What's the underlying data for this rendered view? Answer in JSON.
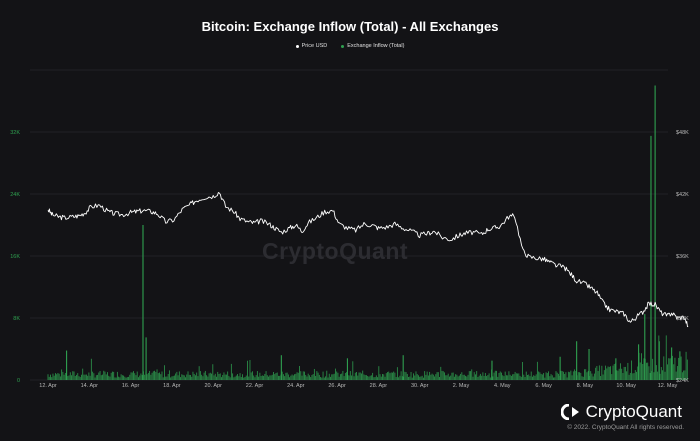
{
  "chart_data": {
    "type": "line",
    "title": "Bitcoin: Exchange Inflow (Total) - All Exchanges",
    "legend": {
      "placement": "top-center",
      "entries": [
        "Price USD",
        "Exchange Inflow (Total)"
      ]
    },
    "x_ticks": [
      "12. Apr",
      "14. Apr",
      "16. Apr",
      "18. Apr",
      "20. Apr",
      "22. Apr",
      "24. Apr",
      "26. Apr",
      "28. Apr",
      "30. Apr",
      "2. May",
      "4. May",
      "6. May",
      "8. May",
      "10. May",
      "12. May"
    ],
    "left_axis": {
      "ticks": [
        "0",
        "8K",
        "16K",
        "24K",
        "32K"
      ],
      "range": [
        0,
        40000
      ]
    },
    "right_axis": {
      "ticks": [
        "$24K",
        "$30K",
        "$36K",
        "$42K",
        "$48K"
      ],
      "range": [
        24000,
        54000
      ]
    },
    "grid": true,
    "series": [
      {
        "name": "Price USD",
        "axis": "right",
        "color": "#ffffff",
        "x_days": [
          0,
          0.2,
          0.5,
          0.8,
          1.2,
          1.5,
          1.8,
          2.1,
          2.5,
          2.9,
          3.2,
          3.6,
          4.0,
          4.3,
          4.6,
          5.0,
          5.3,
          5.7,
          6.1,
          6.5,
          6.9,
          7.2,
          7.6,
          8.0,
          8.3,
          8.6,
          9.0,
          9.3,
          9.7,
          10.0,
          10.3,
          10.7,
          11.0,
          11.3,
          11.7,
          12.0,
          12.3,
          12.6,
          13.0,
          13.4,
          13.8,
          14.1,
          14.5,
          14.9,
          15.3,
          15.7,
          16.0,
          16.4,
          16.8,
          17.2,
          17.6,
          18.0,
          18.4,
          18.7,
          19.1,
          19.5,
          19.9,
          20.2,
          20.6,
          21.0,
          21.3,
          21.6,
          21.9,
          22.3,
          22.6,
          23.0,
          23.3,
          23.7,
          24.0,
          24.3,
          24.6,
          25.0,
          25.3,
          25.6,
          26.0,
          26.3,
          26.6,
          26.9,
          27.2,
          27.6,
          27.9,
          28.2,
          28.5,
          28.8,
          29.1,
          29.4,
          29.7,
          30.0,
          30.2,
          30.5,
          30.8,
          31.0
        ],
        "values": [
          40500,
          40000,
          39800,
          39700,
          39800,
          39900,
          40200,
          40800,
          40900,
          40300,
          40100,
          40000,
          40200,
          40300,
          40400,
          40300,
          40100,
          39300,
          39500,
          40500,
          41000,
          41400,
          41700,
          41800,
          42200,
          40800,
          40300,
          39600,
          39300,
          39200,
          39400,
          39100,
          38700,
          38300,
          38700,
          39000,
          38400,
          39200,
          39700,
          40300,
          40400,
          39100,
          38700,
          38500,
          39100,
          39000,
          38700,
          38800,
          39100,
          38700,
          38400,
          38000,
          38200,
          38400,
          37800,
          37600,
          38000,
          38200,
          38300,
          38100,
          38600,
          38700,
          38900,
          39800,
          39900,
          36500,
          35900,
          35800,
          35700,
          35400,
          35100,
          34900,
          34300,
          33600,
          33300,
          32900,
          32400,
          31400,
          30800,
          30600,
          30400,
          29600,
          30100,
          30600,
          31400,
          31300,
          30500,
          30200,
          30500,
          30000,
          30100,
          29200
        ]
      },
      {
        "name": "Exchange Inflow (Total)",
        "axis": "left",
        "color": "#2fa150",
        "spikes": [
          {
            "x_day": 0.9,
            "value": 3800
          },
          {
            "x_day": 4.6,
            "value": 20000
          },
          {
            "x_day": 4.75,
            "value": 5500
          },
          {
            "x_day": 11.3,
            "value": 3200
          },
          {
            "x_day": 14.5,
            "value": 2800
          },
          {
            "x_day": 17.2,
            "value": 3200
          },
          {
            "x_day": 21.5,
            "value": 2500
          },
          {
            "x_day": 24.8,
            "value": 3000
          },
          {
            "x_day": 25.6,
            "value": 5000
          },
          {
            "x_day": 26.2,
            "value": 4000
          },
          {
            "x_day": 27.5,
            "value": 2800
          },
          {
            "x_day": 28.6,
            "value": 4600
          },
          {
            "x_day": 28.9,
            "value": 8500
          },
          {
            "x_day": 29.2,
            "value": 31500
          },
          {
            "x_day": 29.4,
            "value": 38000
          },
          {
            "x_day": 29.6,
            "value": 5000
          },
          {
            "x_day": 30.2,
            "value": 4200
          },
          {
            "x_day": 30.6,
            "value": 3700
          }
        ]
      }
    ]
  },
  "brand": {
    "name": "CryptoQuant",
    "watermark": "CryptoQuant",
    "copyright": "© 2022. CryptoQuant All rights reserved."
  }
}
